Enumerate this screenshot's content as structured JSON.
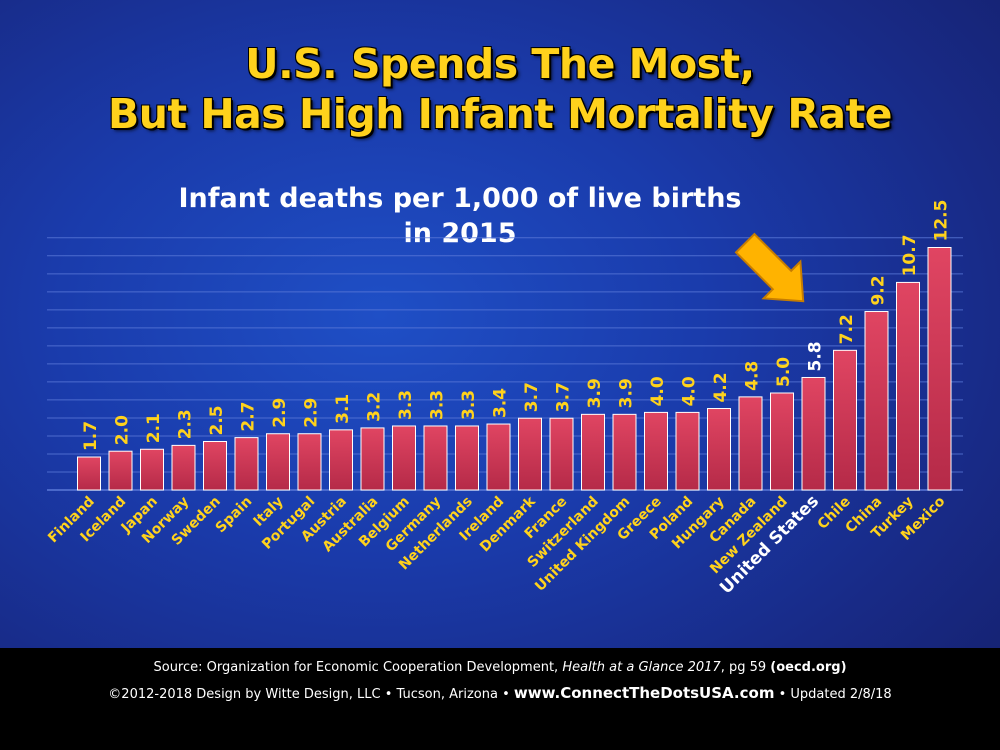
{
  "header": {
    "title_line1": "U.S. Spends The Most,",
    "title_line2": "But Has High Infant Mortality Rate",
    "subtitle_line1": "Infant deaths per 1,000 of live births",
    "subtitle_line2": "in 2015"
  },
  "colors": {
    "bar": "#d23a55",
    "value_label": "#ffd21c",
    "category_label": "#ffd21c",
    "highlight_label": "#ffffff",
    "arrow": "#ffb300",
    "gridline": "#5a78d8"
  },
  "chart_data": {
    "type": "bar",
    "title": "U.S. Spends The Most, But Has High Infant Mortality Rate",
    "subtitle": "Infant deaths per 1,000 of live births in 2015",
    "xlabel": "",
    "ylabel": "",
    "ylim": [
      0,
      14
    ],
    "grid": true,
    "categories": [
      "Finland",
      "Iceland",
      "Japan",
      "Norway",
      "Sweden",
      "Spain",
      "Italy",
      "Portugal",
      "Austria",
      "Australia",
      "Belgium",
      "Germany",
      "Netherlands",
      "Ireland",
      "Denmark",
      "France",
      "Switzerland",
      "United Kingdom",
      "Greece",
      "Poland",
      "Hungary",
      "Canada",
      "New Zealand",
      "United States",
      "Chile",
      "China",
      "Turkey",
      "Mexico"
    ],
    "values": [
      1.7,
      2.0,
      2.1,
      2.3,
      2.5,
      2.7,
      2.9,
      2.9,
      3.1,
      3.2,
      3.3,
      3.3,
      3.3,
      3.4,
      3.7,
      3.7,
      3.9,
      3.9,
      4.0,
      4.0,
      4.2,
      4.8,
      5.0,
      5.8,
      7.2,
      9.2,
      10.7,
      12.5
    ],
    "value_labels": [
      "1.7",
      "2.0",
      "2.1",
      "2.3",
      "2.5",
      "2.7",
      "2.9",
      "2.9",
      "3.1",
      "3.2",
      "3.3",
      "3.3",
      "3.3",
      "3.4",
      "3.7",
      "3.7",
      "3.9",
      "3.9",
      "4.0",
      "4.0",
      "4.2",
      "4.8",
      "5.0",
      "5.8",
      "7.2",
      "9.2",
      "10.7",
      "12.5"
    ],
    "highlight": "United States"
  },
  "footer": {
    "source_prefix": "Source: Organization for Economic Cooperation Development, ",
    "source_title": "Health at a Glance 2017",
    "source_suffix": ", pg 59 ",
    "source_site": "(oecd.org)",
    "credit_prefix": "©2012-2018 Design by Witte Design, LLC • Tucson, Arizona • ",
    "credit_url": "www.ConnectTheDotsUSA.com",
    "credit_suffix": " • Updated 2/8/18"
  }
}
